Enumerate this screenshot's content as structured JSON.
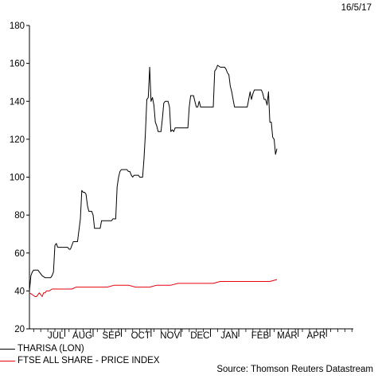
{
  "date_label": "16/5/17",
  "source": "Source: Thomson Reuters Datastream",
  "colors": {
    "tharisa": "#000000",
    "ftse": "#e8000b",
    "axis": "#000000"
  },
  "chart_data": {
    "type": "line",
    "title": "",
    "xlabel": "",
    "ylabel": "",
    "ylim": [
      20,
      180
    ],
    "yticks": [
      20,
      40,
      60,
      80,
      100,
      120,
      140,
      160,
      180
    ],
    "x_range": [
      0,
      229
    ],
    "month_labels": [
      {
        "label": "JUL",
        "pos": 25
      },
      {
        "label": "AUG",
        "pos": 45
      },
      {
        "label": "SEP",
        "pos": 65
      },
      {
        "label": "OCT",
        "pos": 86
      },
      {
        "label": "NOV",
        "pos": 107
      },
      {
        "label": "DEC",
        "pos": 128
      },
      {
        "label": "JAN",
        "pos": 148
      },
      {
        "label": "FEB",
        "pos": 170
      },
      {
        "label": "MAR",
        "pos": 190
      },
      {
        "label": "APR",
        "pos": 210
      }
    ],
    "legend": "bottom-left",
    "series": [
      {
        "name": "THARISA (LON)",
        "points": [
          [
            0,
            40
          ],
          [
            1,
            48
          ],
          [
            2,
            50
          ],
          [
            3,
            51
          ],
          [
            5,
            51
          ],
          [
            6,
            51
          ],
          [
            7,
            50
          ],
          [
            9,
            48
          ],
          [
            11,
            47
          ],
          [
            15,
            47
          ],
          [
            16,
            48
          ],
          [
            17,
            50
          ],
          [
            18,
            64
          ],
          [
            19,
            65
          ],
          [
            20,
            63
          ],
          [
            27,
            63
          ],
          [
            28,
            62
          ],
          [
            29,
            62
          ],
          [
            31,
            66
          ],
          [
            34,
            66
          ],
          [
            35,
            72
          ],
          [
            36,
            78
          ],
          [
            37,
            93
          ],
          [
            38,
            92
          ],
          [
            39,
            92
          ],
          [
            40,
            91
          ],
          [
            41,
            85
          ],
          [
            42,
            82
          ],
          [
            44,
            82
          ],
          [
            45,
            80
          ],
          [
            46,
            73
          ],
          [
            50,
            73
          ],
          [
            51,
            77
          ],
          [
            58,
            77
          ],
          [
            59,
            78
          ],
          [
            61,
            78
          ],
          [
            62,
            95
          ],
          [
            63,
            100
          ],
          [
            64,
            103
          ],
          [
            65,
            104
          ],
          [
            69,
            104
          ],
          [
            70,
            103
          ],
          [
            71,
            103
          ],
          [
            72,
            101
          ],
          [
            73,
            100
          ],
          [
            74,
            101
          ],
          [
            77,
            101
          ],
          [
            78,
            100
          ],
          [
            80,
            100
          ],
          [
            81,
            110
          ],
          [
            82,
            123
          ],
          [
            83,
            141
          ],
          [
            84,
            142
          ],
          [
            85,
            158
          ],
          [
            86,
            140
          ],
          [
            87,
            142
          ],
          [
            88,
            138
          ],
          [
            89,
            129
          ],
          [
            90,
            127
          ],
          [
            91,
            124
          ],
          [
            93,
            124
          ],
          [
            94,
            131
          ],
          [
            95,
            139
          ],
          [
            96,
            140
          ],
          [
            98,
            140
          ],
          [
            99,
            137
          ],
          [
            100,
            124
          ],
          [
            101,
            125
          ],
          [
            102,
            124
          ],
          [
            103,
            126
          ],
          [
            112,
            126
          ],
          [
            113,
            137
          ],
          [
            114,
            143
          ],
          [
            116,
            143
          ],
          [
            117,
            140
          ],
          [
            118,
            137
          ],
          [
            119,
            137
          ],
          [
            120,
            140
          ],
          [
            121,
            137
          ],
          [
            130,
            137
          ],
          [
            131,
            156
          ],
          [
            132,
            157
          ],
          [
            133,
            159
          ],
          [
            135,
            158
          ],
          [
            138,
            158
          ],
          [
            139,
            157
          ],
          [
            140,
            155
          ],
          [
            141,
            154
          ],
          [
            142,
            148
          ],
          [
            143,
            145
          ],
          [
            144,
            141
          ],
          [
            145,
            137
          ],
          [
            154,
            137
          ],
          [
            155,
            141
          ],
          [
            156,
            145
          ],
          [
            157,
            141
          ],
          [
            158,
            144
          ],
          [
            159,
            146
          ],
          [
            164,
            146
          ],
          [
            165,
            144
          ],
          [
            166,
            141
          ],
          [
            167,
            141
          ],
          [
            168,
            138
          ],
          [
            169,
            145
          ],
          [
            170,
            129
          ],
          [
            171,
            129
          ],
          [
            172,
            121
          ],
          [
            173,
            120
          ],
          [
            174,
            112
          ],
          [
            175,
            115
          ]
        ]
      },
      {
        "name": "FTSE ALL SHARE - PRICE INDEX",
        "points": [
          [
            0,
            39
          ],
          [
            2,
            38
          ],
          [
            4,
            37
          ],
          [
            5,
            37
          ],
          [
            6,
            38
          ],
          [
            7,
            39
          ],
          [
            8,
            38
          ],
          [
            9,
            37
          ],
          [
            10,
            39
          ],
          [
            11,
            39
          ],
          [
            12,
            40
          ],
          [
            14,
            40
          ],
          [
            16,
            41
          ],
          [
            20,
            41
          ],
          [
            24,
            41
          ],
          [
            30,
            41
          ],
          [
            33,
            42
          ],
          [
            35,
            42
          ],
          [
            40,
            42
          ],
          [
            45,
            42
          ],
          [
            50,
            42
          ],
          [
            55,
            42
          ],
          [
            60,
            43
          ],
          [
            65,
            43
          ],
          [
            70,
            43
          ],
          [
            75,
            42
          ],
          [
            80,
            42
          ],
          [
            85,
            42
          ],
          [
            90,
            43
          ],
          [
            95,
            43
          ],
          [
            100,
            43
          ],
          [
            105,
            44
          ],
          [
            110,
            44
          ],
          [
            115,
            44
          ],
          [
            120,
            44
          ],
          [
            125,
            44
          ],
          [
            130,
            44
          ],
          [
            135,
            45
          ],
          [
            140,
            45
          ],
          [
            145,
            45
          ],
          [
            150,
            45
          ],
          [
            155,
            45
          ],
          [
            160,
            45
          ],
          [
            165,
            45
          ],
          [
            170,
            45
          ],
          [
            175,
            46
          ]
        ]
      }
    ]
  }
}
